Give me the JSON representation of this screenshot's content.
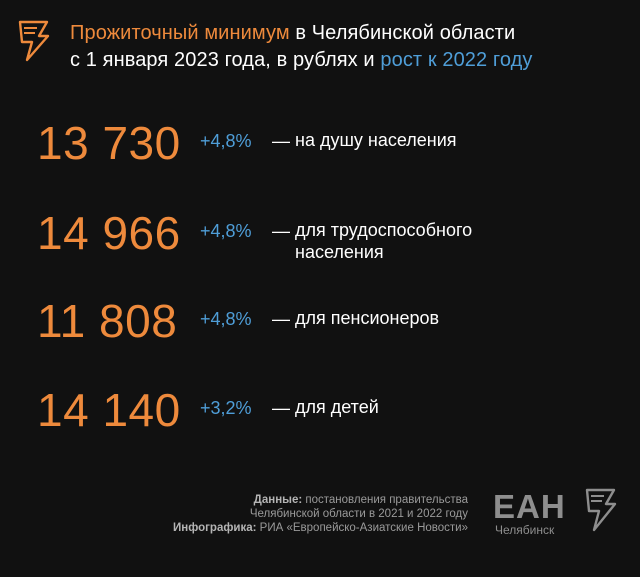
{
  "headline": {
    "line1_orange": "Прожиточный минимум",
    "line1_white": " в Челябинской области",
    "line2_white": "с 1 января 2023 года, в рублях и ",
    "line2_blue": "рост к 2022 году"
  },
  "rows": [
    {
      "value": "13 730",
      "growth": "+4,8%",
      "dash": "—",
      "desc": "на душу населения"
    },
    {
      "value": "14 966",
      "growth": "+4,8%",
      "dash": "—",
      "desc": "для трудоспособного населения"
    },
    {
      "value": "11 808",
      "growth": "+4,8%",
      "dash": "—",
      "desc": "для пенсионеров"
    },
    {
      "value": "14 140",
      "growth": "+3,2%",
      "dash": "—",
      "desc": "для детей"
    }
  ],
  "footer": {
    "data_label": "Данные:",
    "data_line1": " постановления правительства",
    "data_line2": "Челябинской области в 2021  и 2022 году",
    "infographic_label": "Инфографика:",
    "infographic_text": " РИА «Европейско-Азиатские Новости»"
  },
  "brand": {
    "main": "ЕАН",
    "sub": "Челябинск"
  },
  "colors": {
    "background": "#111111",
    "accent_orange": "#ee8a3c",
    "accent_blue": "#4f9ed8",
    "text": "#ffffff",
    "muted": "#8e8e8e"
  },
  "icons": {
    "top": "lightning-page-icon",
    "brand": "lightning-page-icon"
  }
}
